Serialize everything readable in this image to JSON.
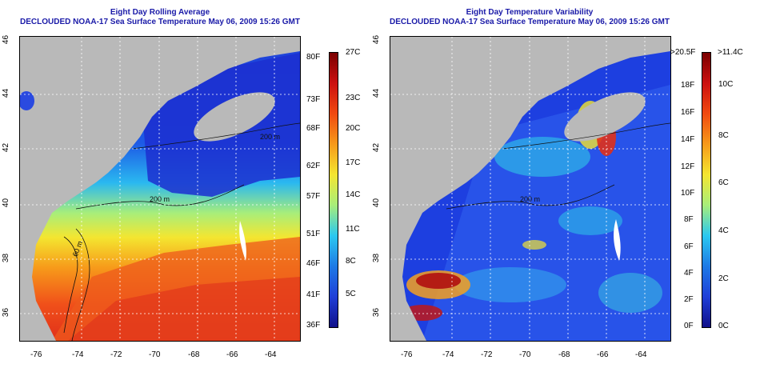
{
  "left": {
    "title_line1": "Eight Day Rolling Average",
    "title_line2": "DECLOUDED NOAA-17 Sea Surface Temperature May 06, 2009 15:26 GMT",
    "x_ticks": [
      "-76",
      "-74",
      "-72",
      "-70",
      "-68",
      "-66",
      "-64"
    ],
    "y_ticks": [
      "46",
      "44",
      "42",
      "40",
      "38",
      "36"
    ],
    "colorbar_f": [
      "80F",
      "73F",
      "68F",
      "62F",
      "57F",
      "51F",
      "46F",
      "41F",
      "36F"
    ],
    "colorbar_c": [
      "27C",
      "23C",
      "20C",
      "17C",
      "14C",
      "11C",
      "8C",
      "5C"
    ],
    "contour_labels": [
      "200 m",
      "60 m",
      "200 m"
    ]
  },
  "right": {
    "title_line1": "Eight Day Temperature Variability",
    "title_line2": "DECLOUDED NOAA-17 Sea Surface Temperature May 06, 2009 15:26 GMT",
    "x_ticks": [
      "-76",
      "-74",
      "-72",
      "-70",
      "-68",
      "-66",
      "-64"
    ],
    "y_ticks": [
      "46",
      "44",
      "42",
      "40",
      "38",
      "36"
    ],
    "colorbar_f": [
      ">20.5F",
      "18F",
      "16F",
      "14F",
      "12F",
      "10F",
      "8F",
      "6F",
      "4F",
      "2F",
      "0F"
    ],
    "colorbar_c": [
      ">11.4C",
      "10C",
      "8C",
      "6C",
      "4C",
      "2C",
      "0C"
    ],
    "contour_labels": [
      "200 m"
    ]
  },
  "colors": {
    "land": "#b9b9b9",
    "title": "#1a1aa8"
  }
}
